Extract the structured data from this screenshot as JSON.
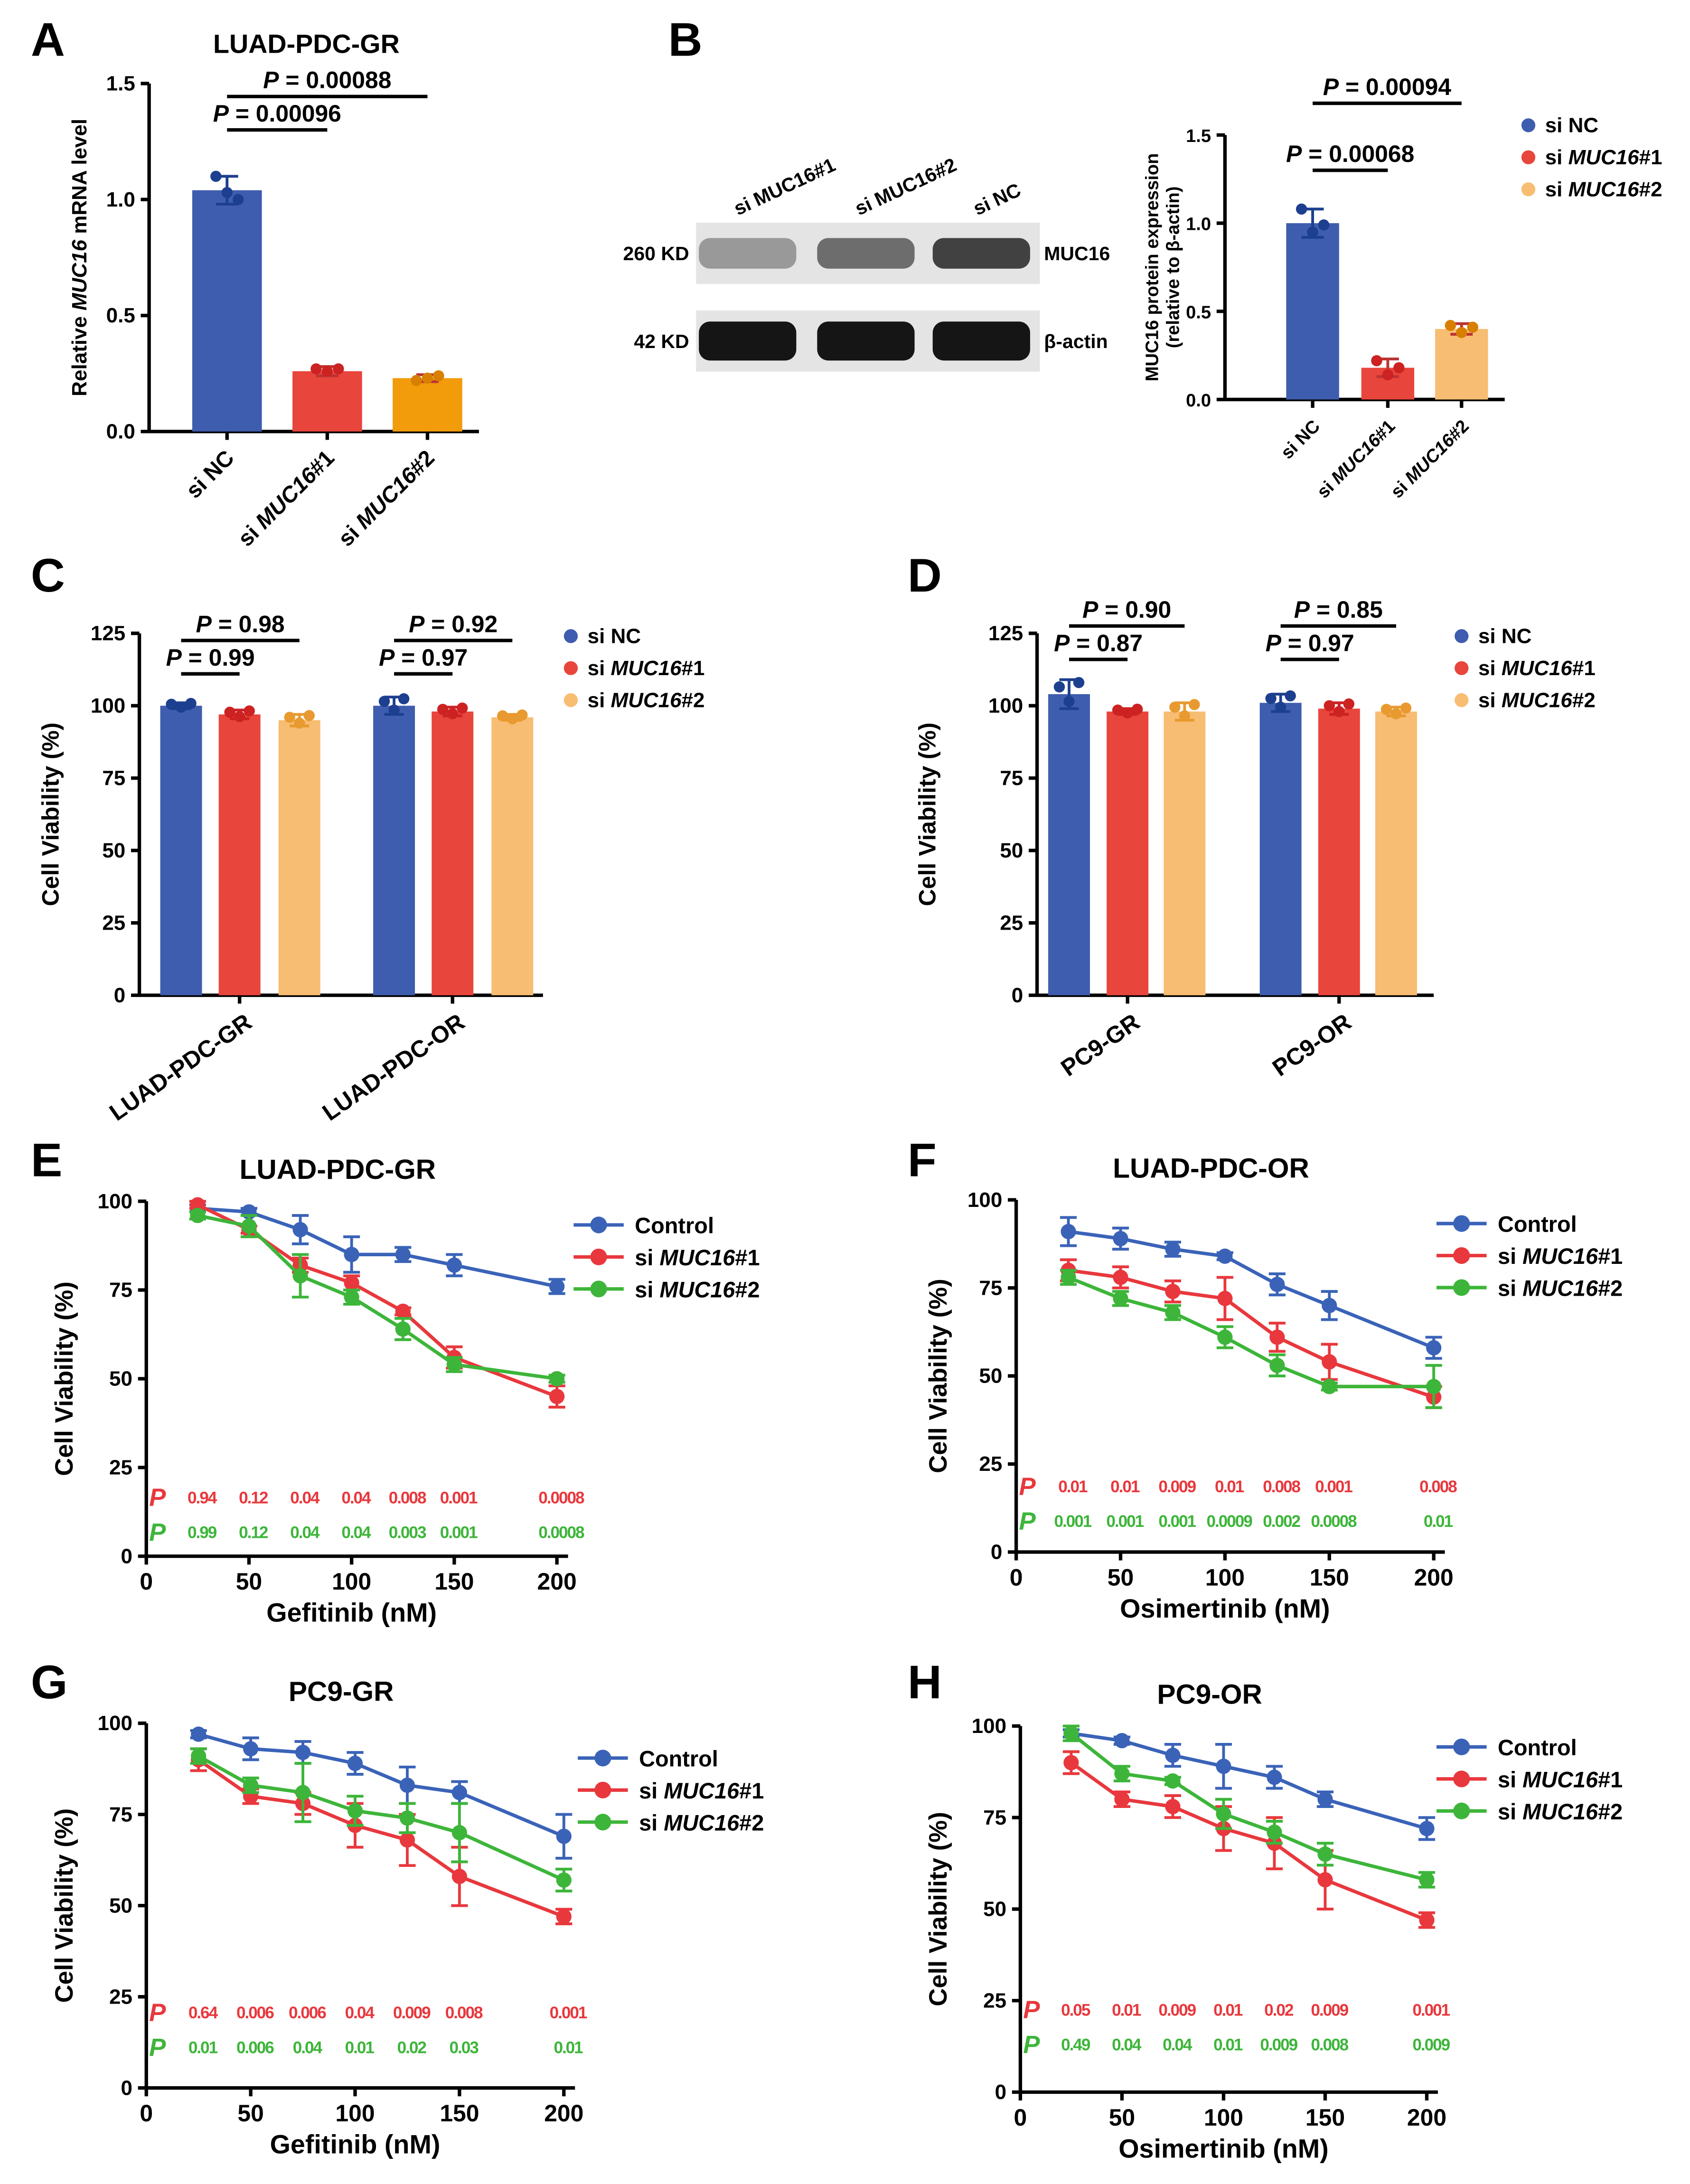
{
  "panel_letters": [
    "A",
    "B",
    "C",
    "D",
    "E",
    "F",
    "G",
    "H"
  ],
  "colors": {
    "blue": "#3F5DAE",
    "red": "#E8453C",
    "orange": "#F29B0B",
    "light_orange": "#F7BD72",
    "line_blue": "#3A63B8",
    "line_red": "#E8383D",
    "line_green": "#3DB53A"
  },
  "blot": {
    "lanes": [
      "si MUC16#1",
      "si MUC16#2",
      "si NC"
    ],
    "rows": [
      {
        "size": "260 KD",
        "protein": "MUC16",
        "intensity": [
          0.35,
          0.55,
          0.75
        ]
      },
      {
        "size": "42 KD",
        "protein": "β-actin",
        "intensity": [
          0.95,
          0.95,
          0.95
        ]
      }
    ]
  },
  "chart_data": [
    {
      "panel": "A",
      "type": "bar",
      "title": "LUAD-PDC-GR",
      "ylabel": "Relative MUC16 mRNA level",
      "ylim": [
        0,
        1.5
      ],
      "yticks": [
        "0.0",
        "0.5",
        "1.0",
        "1.5"
      ],
      "categories": [
        "si NC",
        "si MUC16#1",
        "si MUC16#2"
      ],
      "values": [
        1.04,
        0.26,
        0.23
      ],
      "errors": [
        0.06,
        0.02,
        0.015
      ],
      "points": [
        [
          1.1,
          1.03,
          1.0
        ],
        [
          0.27,
          0.26,
          0.27
        ],
        [
          0.22,
          0.23,
          0.24
        ]
      ],
      "annotations": [
        {
          "text": "P = 0.00096",
          "from": 0,
          "to": 1,
          "y": 1.3
        },
        {
          "text": "P = 0.00088",
          "from": 0,
          "to": 2,
          "y": 1.43
        }
      ]
    },
    {
      "panel": "B",
      "type": "bar",
      "ylabel": "MUC16 protein expression (relative to β-actin)",
      "ylim": [
        0,
        1.5
      ],
      "yticks": [
        "0.0",
        "0.5",
        "1.0",
        "1.5"
      ],
      "categories": [
        "si NC",
        "si MUC16#1",
        "si MUC16#2"
      ],
      "values": [
        1.0,
        0.18,
        0.4
      ],
      "errors": [
        0.08,
        0.05,
        0.03
      ],
      "points": [
        [
          1.08,
          0.95,
          0.99
        ],
        [
          0.22,
          0.14,
          0.18
        ],
        [
          0.42,
          0.38,
          0.41
        ]
      ],
      "legend": [
        "si NC",
        "si MUC16#1",
        "si MUC16#2"
      ],
      "annotations": [
        {
          "text": "P = 0.00068",
          "from": 0,
          "to": 1,
          "y": 1.3
        },
        {
          "text": "P = 0.00094",
          "from": 0,
          "to": 2,
          "y": 1.68
        }
      ]
    },
    {
      "panel": "C",
      "type": "grouped_bar",
      "ylabel": "Cell Viability (%)",
      "ylim": [
        0,
        125
      ],
      "yticks": [
        "0",
        "25",
        "50",
        "75",
        "100",
        "125"
      ],
      "groups": [
        "LUAD-PDC-GR",
        "LUAD-PDC-OR"
      ],
      "legend": [
        "si NC",
        "si MUC16#1",
        "si MUC16#2"
      ],
      "values": [
        [
          100,
          97,
          95
        ],
        [
          100,
          98,
          96
        ]
      ],
      "errors": [
        [
          1,
          1.5,
          2
        ],
        [
          3,
          1.5,
          1
        ]
      ],
      "annotations": [
        {
          "text": "P = 0.99",
          "group": 0,
          "from": 0,
          "to": 1,
          "y": 111
        },
        {
          "text": "P = 0.98",
          "group": 0,
          "from": 0,
          "to": 2,
          "y": 119
        },
        {
          "text": "P = 0.97",
          "group": 1,
          "from": 0,
          "to": 1,
          "y": 111
        },
        {
          "text": "P = 0.92",
          "group": 1,
          "from": 0,
          "to": 2,
          "y": 118
        }
      ]
    },
    {
      "panel": "D",
      "type": "grouped_bar",
      "ylabel": "Cell Viability (%)",
      "ylim": [
        0,
        125
      ],
      "yticks": [
        "0",
        "25",
        "50",
        "75",
        "100",
        "125"
      ],
      "groups": [
        "PC9-GR",
        "PC9-OR"
      ],
      "legend": [
        "si NC",
        "si MUC16#1",
        "si MUC16#2"
      ],
      "values": [
        [
          104,
          98,
          98
        ],
        [
          101,
          99,
          98
        ]
      ],
      "errors": [
        [
          5,
          1,
          3
        ],
        [
          3,
          2,
          1.5
        ]
      ],
      "annotations": [
        {
          "text": "P = 0.87",
          "group": 0,
          "from": 0,
          "to": 1,
          "y": 116
        },
        {
          "text": "P = 0.90",
          "group": 0,
          "from": 0,
          "to": 2,
          "y": 121
        },
        {
          "text": "P = 0.97",
          "group": 1,
          "from": 0,
          "to": 1,
          "y": 116
        },
        {
          "text": "P = 0.85",
          "group": 1,
          "from": 0,
          "to": 2,
          "y": 121
        }
      ]
    },
    {
      "panel": "E",
      "type": "line",
      "title": "LUAD-PDC-GR",
      "xlabel": "Gefitinib (nM)",
      "ylabel": "Cell Viability (%)",
      "xlim": [
        0,
        200
      ],
      "ylim": [
        0,
        100
      ],
      "xticks": [
        "0",
        "50",
        "100",
        "150",
        "200"
      ],
      "yticks": [
        "0",
        "25",
        "50",
        "75",
        "100"
      ],
      "x": [
        25,
        50,
        75,
        100,
        125,
        150,
        200
      ],
      "series": [
        {
          "name": "Control",
          "values": [
            98,
            97,
            92,
            85,
            85,
            82,
            76
          ],
          "errors": [
            1,
            1,
            4,
            5,
            2,
            3,
            2
          ]
        },
        {
          "name": "si MUC16#1",
          "values": [
            99,
            92,
            82,
            77,
            69,
            56,
            45
          ],
          "errors": [
            1,
            1,
            2,
            2,
            1,
            3,
            3
          ]
        },
        {
          "name": "si MUC16#2",
          "values": [
            96,
            93,
            79,
            73,
            64,
            54,
            50
          ],
          "errors": [
            1,
            3,
            6,
            2,
            3,
            2,
            1
          ]
        }
      ],
      "p_red": [
        "0.94",
        "0.12",
        "0.04",
        "0.04",
        "0.008",
        "0.001",
        "0.0008"
      ],
      "p_green": [
        "0.99",
        "0.12",
        "0.04",
        "0.04",
        "0.003",
        "0.001",
        "0.0008"
      ]
    },
    {
      "panel": "F",
      "type": "line",
      "title": "LUAD-PDC-OR",
      "xlabel": "Osimertinib (nM)",
      "ylabel": "Cell Viability (%)",
      "xlim": [
        0,
        200
      ],
      "ylim": [
        0,
        100
      ],
      "xticks": [
        "0",
        "50",
        "100",
        "150",
        "200"
      ],
      "yticks": [
        "0",
        "25",
        "50",
        "75",
        "100"
      ],
      "x": [
        25,
        50,
        75,
        100,
        125,
        150,
        200
      ],
      "series": [
        {
          "name": "Control",
          "values": [
            91,
            89,
            86,
            84,
            76,
            70,
            58
          ],
          "errors": [
            4,
            3,
            2,
            1,
            3,
            4,
            3
          ]
        },
        {
          "name": "si MUC16#1",
          "values": [
            80,
            78,
            74,
            72,
            61,
            54,
            44
          ],
          "errors": [
            3,
            3,
            3,
            6,
            4,
            5,
            3
          ]
        },
        {
          "name": "si MUC16#2",
          "values": [
            78,
            72,
            68,
            61,
            53,
            47,
            47
          ],
          "errors": [
            2,
            2,
            2,
            3,
            3,
            1,
            6
          ]
        }
      ],
      "p_red": [
        "0.01",
        "0.01",
        "0.009",
        "0.01",
        "0.008",
        "0.001",
        "0.008"
      ],
      "p_green": [
        "0.001",
        "0.001",
        "0.001",
        "0.0009",
        "0.002",
        "0.0008",
        "0.01"
      ]
    },
    {
      "panel": "G",
      "type": "line",
      "title": "PC9-GR",
      "xlabel": "Gefitinib (nM)",
      "ylabel": "Cell Viability (%)",
      "xlim": [
        0,
        200
      ],
      "ylim": [
        0,
        100
      ],
      "xticks": [
        "0",
        "50",
        "100",
        "150",
        "200"
      ],
      "yticks": [
        "0",
        "25",
        "50",
        "75",
        "100"
      ],
      "x": [
        25,
        50,
        75,
        100,
        125,
        150,
        200
      ],
      "series": [
        {
          "name": "Control",
          "values": [
            97,
            93,
            92,
            89,
            83,
            81,
            69
          ],
          "errors": [
            1,
            3,
            3,
            3,
            5,
            3,
            6
          ]
        },
        {
          "name": "si MUC16#1",
          "values": [
            90,
            80,
            78,
            72,
            68,
            58,
            47
          ],
          "errors": [
            3,
            2,
            3,
            6,
            7,
            8,
            2
          ]
        },
        {
          "name": "si MUC16#2",
          "values": [
            91,
            83,
            81,
            76,
            74,
            70,
            57
          ],
          "errors": [
            2,
            2,
            8,
            4,
            4,
            8,
            3
          ]
        }
      ],
      "p_red": [
        "0.64",
        "0.006",
        "0.006",
        "0.04",
        "0.009",
        "0.008",
        "0.001"
      ],
      "p_green": [
        "0.01",
        "0.006",
        "0.04",
        "0.01",
        "0.02",
        "0.03",
        "0.01"
      ]
    },
    {
      "panel": "H",
      "type": "line",
      "title": "PC9-OR",
      "xlabel": "Osimertinib (nM)",
      "ylabel": "Cell Viability (%)",
      "xlim": [
        0,
        200
      ],
      "ylim": [
        0,
        100
      ],
      "xticks": [
        "0",
        "50",
        "100",
        "150",
        "200"
      ],
      "yticks": [
        "0",
        "25",
        "50",
        "75",
        "100"
      ],
      "x": [
        25,
        50,
        75,
        100,
        125,
        150,
        200
      ],
      "series": [
        {
          "name": "Control",
          "values": [
            98,
            96,
            92,
            89,
            86,
            80,
            72
          ],
          "errors": [
            1,
            1,
            3,
            6,
            3,
            2,
            3
          ]
        },
        {
          "name": "si MUC16#1",
          "values": [
            90,
            80,
            78,
            72,
            68,
            58,
            47
          ],
          "errors": [
            3,
            2,
            3,
            6,
            7,
            8,
            2
          ]
        },
        {
          "name": "si MUC16#2",
          "values": [
            98,
            87,
            85,
            76,
            71,
            65,
            58
          ],
          "errors": [
            2,
            2,
            1,
            4,
            3,
            3,
            2
          ]
        }
      ],
      "p_red": [
        "0.05",
        "0.01",
        "0.009",
        "0.01",
        "0.02",
        "0.009",
        "0.001"
      ],
      "p_green": [
        "0.49",
        "0.04",
        "0.04",
        "0.01",
        "0.009",
        "0.008",
        "0.009"
      ]
    }
  ]
}
